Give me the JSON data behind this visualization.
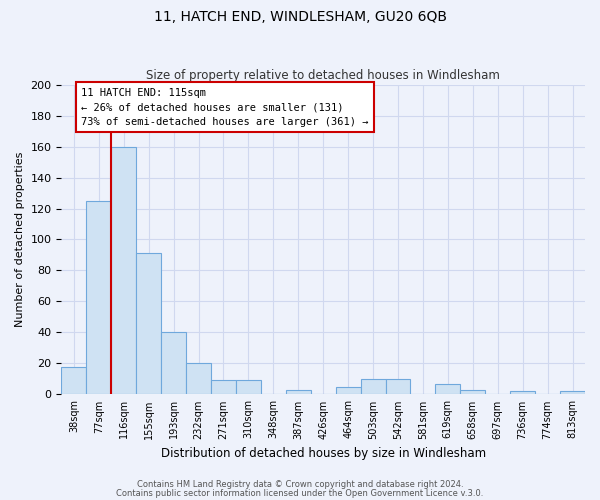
{
  "title": "11, HATCH END, WINDLESHAM, GU20 6QB",
  "subtitle": "Size of property relative to detached houses in Windlesham",
  "xlabel": "Distribution of detached houses by size in Windlesham",
  "ylabel": "Number of detached properties",
  "bin_labels": [
    "38sqm",
    "77sqm",
    "116sqm",
    "155sqm",
    "193sqm",
    "232sqm",
    "271sqm",
    "310sqm",
    "348sqm",
    "387sqm",
    "426sqm",
    "464sqm",
    "503sqm",
    "542sqm",
    "581sqm",
    "619sqm",
    "658sqm",
    "697sqm",
    "736sqm",
    "774sqm",
    "813sqm"
  ],
  "bar_values": [
    18,
    125,
    160,
    91,
    40,
    20,
    9,
    9,
    0,
    3,
    0,
    5,
    10,
    10,
    0,
    7,
    3,
    0,
    2,
    0,
    2
  ],
  "bar_color": "#cfe2f3",
  "bar_edge_color": "#6fa8dc",
  "vline_color": "#cc0000",
  "annotation_title": "11 HATCH END: 115sqm",
  "annotation_line1": "← 26% of detached houses are smaller (131)",
  "annotation_line2": "73% of semi-detached houses are larger (361) →",
  "annotation_box_color": "#ffffff",
  "annotation_box_edge": "#cc0000",
  "ylim": [
    0,
    200
  ],
  "yticks": [
    0,
    20,
    40,
    60,
    80,
    100,
    120,
    140,
    160,
    180,
    200
  ],
  "footnote1": "Contains HM Land Registry data © Crown copyright and database right 2024.",
  "footnote2": "Contains public sector information licensed under the Open Government Licence v.3.0.",
  "bg_color": "#eef2fb",
  "grid_color": "#d0d8ef",
  "title_fontsize": 10,
  "subtitle_fontsize": 8.5,
  "ylabel_fontsize": 8,
  "xlabel_fontsize": 8.5
}
